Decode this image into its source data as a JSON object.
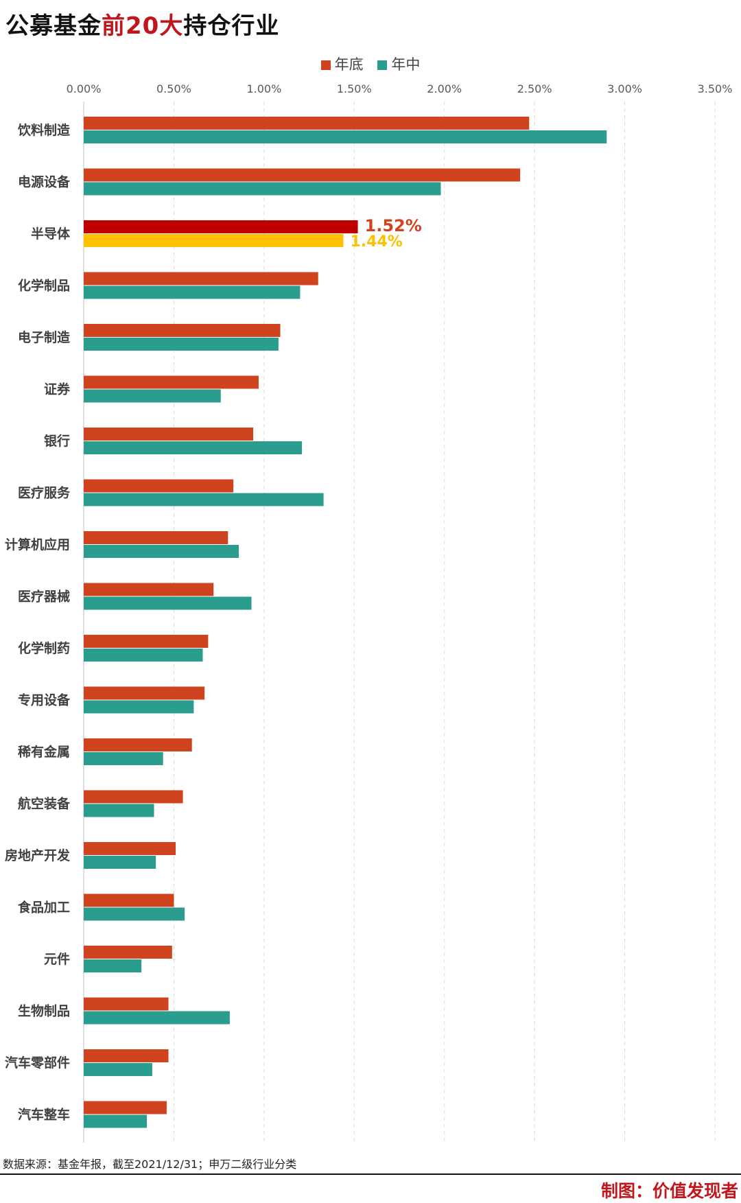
{
  "title_parts": {
    "pre": "公募基金",
    "highlight": "前20大",
    "post": "持仓行业"
  },
  "legend": [
    {
      "label": "年底",
      "color": "#d0431f"
    },
    {
      "label": "年中",
      "color": "#2a9d8f"
    }
  ],
  "highlight_colors": {
    "year_end": "#c00000",
    "mid_year": "#ffc000"
  },
  "footer": {
    "source": "数据来源：基金年报，截至2021/12/31；申万二级行业分类",
    "credit": "制图：价值发现者"
  },
  "chart_data": {
    "type": "bar",
    "orientation": "horizontal",
    "categories": [
      "饮料制造",
      "电源设备",
      "半导体",
      "化学制品",
      "电子制造",
      "证券",
      "银行",
      "医疗服务",
      "计算机应用",
      "医疗器械",
      "化学制药",
      "专用设备",
      "稀有金属",
      "航空装备",
      "房地产开发",
      "食品加工",
      "元件",
      "生物制品",
      "汽车零部件",
      "汽车整车"
    ],
    "series": [
      {
        "name": "年底",
        "values": [
          2.47,
          2.42,
          1.52,
          1.3,
          1.09,
          0.97,
          0.94,
          0.83,
          0.8,
          0.72,
          0.69,
          0.67,
          0.6,
          0.55,
          0.51,
          0.5,
          0.49,
          0.47,
          0.47,
          0.46
        ]
      },
      {
        "name": "年中",
        "values": [
          2.9,
          1.98,
          1.44,
          1.2,
          1.08,
          0.76,
          1.21,
          1.33,
          0.86,
          0.93,
          0.66,
          0.61,
          0.44,
          0.39,
          0.4,
          0.56,
          0.32,
          0.81,
          0.38,
          0.35
        ]
      }
    ],
    "xlim": [
      0,
      3.5
    ],
    "ticks": [
      "0.00%",
      "0.50%",
      "1.00%",
      "1.50%",
      "2.00%",
      "2.50%",
      "3.00%",
      "3.50%"
    ],
    "tick_values": [
      0,
      0.5,
      1.0,
      1.5,
      2.0,
      2.5,
      3.0,
      3.5
    ],
    "x_axis_position": "top",
    "grid": "vertical dashed",
    "legend_position": "top-center",
    "highlight_category": "半导体",
    "highlight_labels": [
      "1.52%",
      "1.44%"
    ]
  }
}
